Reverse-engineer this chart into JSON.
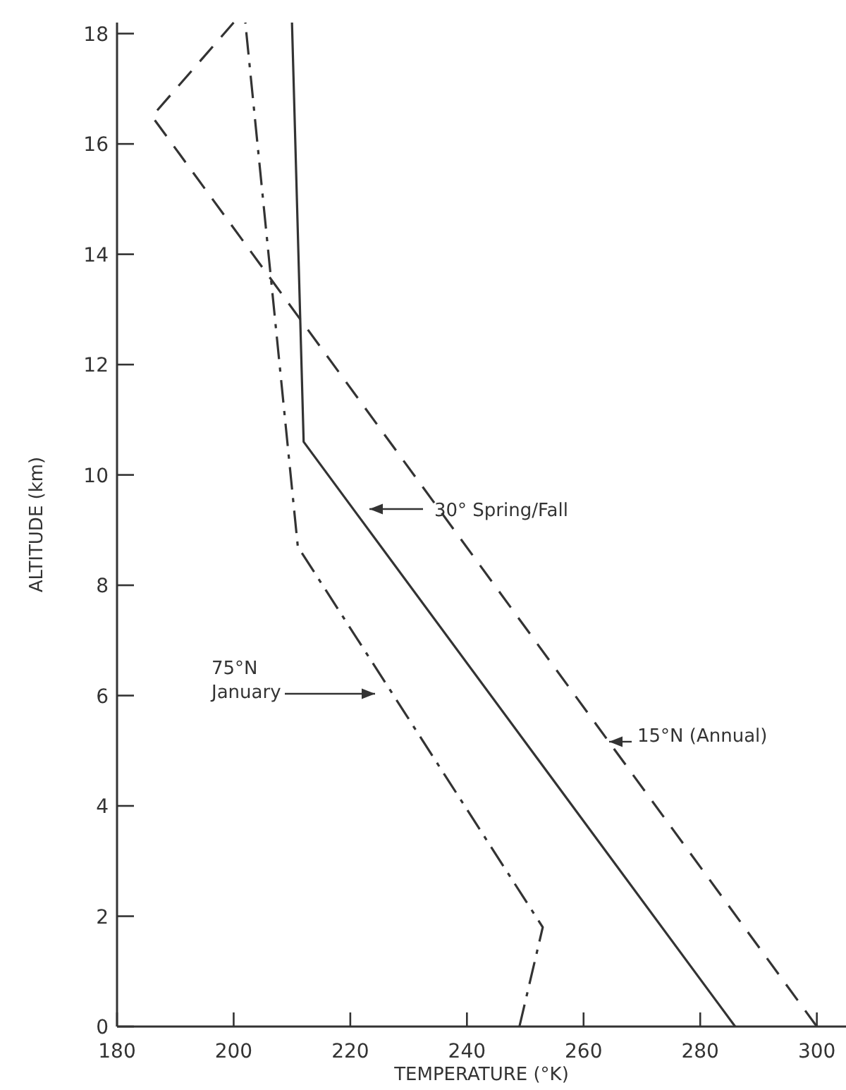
{
  "chart_data": {
    "type": "line",
    "xlabel": "TEMPERATURE (°K)",
    "ylabel": "ALTITUDE (km)",
    "xlim": [
      180,
      305
    ],
    "ylim": [
      0,
      18.2
    ],
    "xticks": [
      180,
      200,
      220,
      240,
      260,
      280,
      300
    ],
    "yticks": [
      0,
      2,
      4,
      6,
      8,
      10,
      12,
      14,
      16,
      18
    ],
    "grid": false,
    "marker": "none",
    "series": [
      {
        "color": "#333333",
        "line_style": "solid",
        "x": [
          286,
          212,
          210
        ],
        "values": [
          0,
          10.6,
          18.2
        ]
      },
      {
        "color": "#333333",
        "line_style": "dashdot",
        "x": [
          249,
          253,
          211,
          202
        ],
        "values": [
          0,
          1.8,
          8.7,
          18.2
        ]
      },
      {
        "color": "#333333",
        "line_style": "dashed",
        "x": [
          300,
          186,
          200
        ],
        "values": [
          0,
          16.5,
          18.2
        ]
      }
    ],
    "annotations": [
      "30° Spring/Fall",
      "75°N\nJanuary",
      "15°N (Annual)"
    ]
  }
}
